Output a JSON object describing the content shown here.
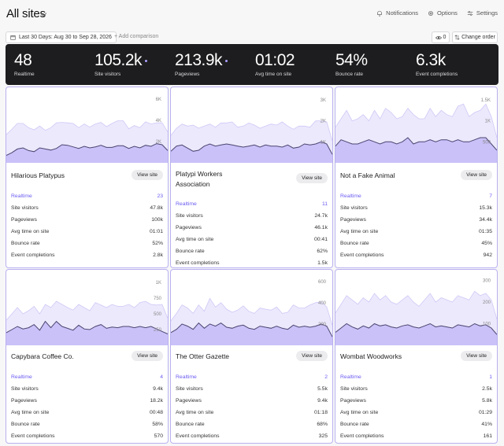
{
  "header": {
    "title": "All sites",
    "actions": [
      {
        "label": "Notifications",
        "icon": "bell-icon"
      },
      {
        "label": "Options",
        "icon": "gear-icon"
      },
      {
        "label": "Settings",
        "icon": "sliders-icon"
      }
    ]
  },
  "toolbar": {
    "date_range": "Last 30 Days: Aug 30 to Sep 28, 2026",
    "compare": "+ Add comparison",
    "eye_count": "0",
    "order_label": "Change order"
  },
  "summary": [
    {
      "value": "48",
      "label": "Realtime",
      "dot": false
    },
    {
      "value": "105.2k",
      "label": "Site visitors",
      "dot": true
    },
    {
      "value": "213.9k",
      "label": "Pageviews",
      "dot": true
    },
    {
      "value": "01:02",
      "label": "Avg time on site",
      "dot": false
    },
    {
      "value": "54%",
      "label": "Bounce rate",
      "dot": false
    },
    {
      "value": "6.3k",
      "label": "Event completions",
      "dot": false
    }
  ],
  "metric_labels": [
    "Realtime",
    "Site visitors",
    "Pageviews",
    "Avg time on site",
    "Bounce rate",
    "Event completions"
  ],
  "view_label": "View site",
  "colors": {
    "accent": "#6b5cf0",
    "light_fill": "#ece9fd",
    "dark_fill": "#c9c1f8",
    "line": "#4b4670"
  },
  "sites": [
    {
      "name": "Hilarious Platypus",
      "metrics": [
        "23",
        "47.8k",
        "100k",
        "01:01",
        "52%",
        "2.8k"
      ],
      "ticks": [
        "6K",
        "4K",
        "2K"
      ],
      "pageviews": [
        2650,
        3150,
        3700,
        3700,
        3300,
        3100,
        3450,
        3050,
        3300,
        3750,
        3800,
        3750,
        3700,
        3300,
        3650,
        3350,
        3650,
        3800,
        3400,
        3700,
        3950,
        3950,
        3200,
        3500,
        3300,
        3850,
        3650,
        3750,
        3750,
        2900
      ],
      "visitors": [
        700,
        950,
        1300,
        1400,
        1150,
        1050,
        1400,
        1300,
        1200,
        1350,
        1700,
        1650,
        1500,
        1350,
        1550,
        1400,
        1500,
        1650,
        1450,
        1450,
        1600,
        1600,
        1350,
        1550,
        1400,
        1650,
        1550,
        1800,
        1700,
        1150
      ]
    },
    {
      "name": "Platypi Workers Association",
      "metrics": [
        "11",
        "24.7k",
        "46.1k",
        "00:41",
        "62%",
        "1.5k"
      ],
      "ticks": [
        "3K",
        "2K",
        "1K"
      ],
      "pageviews": [
        1300,
        1650,
        1850,
        1750,
        1800,
        1650,
        1750,
        1850,
        1700,
        1900,
        1900,
        1950,
        1700,
        1750,
        1900,
        1800,
        1650,
        1750,
        1850,
        1800,
        1950,
        1750,
        1600,
        1750,
        1750,
        1700,
        2000,
        2000,
        1950,
        1050
      ],
      "visitors": [
        550,
        800,
        850,
        700,
        550,
        600,
        800,
        900,
        800,
        850,
        900,
        850,
        800,
        750,
        800,
        850,
        750,
        850,
        800,
        800,
        750,
        850,
        700,
        750,
        900,
        850,
        900,
        1000,
        900,
        400
      ]
    },
    {
      "name": "Not a Fake Animal",
      "metrics": [
        "7",
        "15.3k",
        "34.4k",
        "01:35",
        "45%",
        "942"
      ],
      "ticks": [
        "1.5K",
        "1K",
        "500"
      ],
      "pageviews": [
        850,
        1050,
        1250,
        1000,
        1050,
        1150,
        1000,
        1250,
        1050,
        1300,
        1200,
        1050,
        1100,
        1300,
        1150,
        1050,
        1050,
        1300,
        1100,
        1250,
        1150,
        1100,
        1350,
        1400,
        1100,
        1200,
        1250,
        1400,
        1100,
        600
      ],
      "visitors": [
        400,
        550,
        500,
        450,
        450,
        500,
        550,
        500,
        450,
        500,
        500,
        450,
        500,
        600,
        450,
        500,
        500,
        550,
        500,
        550,
        550,
        500,
        550,
        500,
        500,
        550,
        600,
        600,
        450,
        300
      ]
    },
    {
      "name": "Capybara Coffee Co.",
      "metrics": [
        "4",
        "9.4k",
        "18.2k",
        "00:48",
        "58%",
        "570"
      ],
      "ticks": [
        "1K",
        "750",
        "500",
        "250"
      ],
      "pageviews": [
        400,
        500,
        600,
        500,
        550,
        620,
        500,
        650,
        600,
        700,
        650,
        600,
        560,
        650,
        600,
        550,
        680,
        640,
        600,
        650,
        620,
        620,
        650,
        600,
        680,
        700,
        650,
        640,
        650,
        430
      ],
      "visitors": [
        200,
        250,
        300,
        260,
        280,
        330,
        240,
        380,
        280,
        380,
        300,
        270,
        240,
        320,
        260,
        250,
        300,
        330,
        270,
        290,
        280,
        300,
        300,
        280,
        300,
        280,
        300,
        260,
        220,
        180
      ]
    },
    {
      "name": "The Otter Gazette",
      "metrics": [
        "2",
        "5.5k",
        "9.4k",
        "01:18",
        "68%",
        "325"
      ],
      "ticks": [
        "600",
        "400",
        "200"
      ],
      "pageviews": [
        230,
        300,
        380,
        350,
        300,
        380,
        320,
        440,
        360,
        400,
        340,
        310,
        330,
        370,
        320,
        300,
        350,
        340,
        330,
        360,
        300,
        310,
        380,
        350,
        350,
        380,
        400,
        410,
        360,
        190
      ],
      "visitors": [
        120,
        150,
        200,
        180,
        150,
        210,
        160,
        200,
        180,
        210,
        170,
        160,
        180,
        190,
        160,
        150,
        180,
        170,
        160,
        180,
        160,
        150,
        190,
        170,
        180,
        170,
        180,
        200,
        180,
        80
      ]
    },
    {
      "name": "Wombat Woodworks",
      "metrics": [
        "1",
        "2.5k",
        "5.8k",
        "01:29",
        "41%",
        "161"
      ],
      "ticks": [
        "300",
        "200",
        "100"
      ],
      "pageviews": [
        150,
        190,
        230,
        210,
        190,
        220,
        200,
        240,
        210,
        230,
        200,
        190,
        210,
        230,
        200,
        180,
        210,
        240,
        200,
        220,
        210,
        200,
        230,
        220,
        210,
        250,
        230,
        240,
        210,
        120
      ],
      "visitors": [
        60,
        80,
        100,
        85,
        75,
        90,
        80,
        100,
        90,
        95,
        85,
        80,
        90,
        95,
        85,
        80,
        90,
        100,
        85,
        90,
        85,
        80,
        95,
        90,
        85,
        100,
        90,
        95,
        80,
        50
      ]
    }
  ]
}
